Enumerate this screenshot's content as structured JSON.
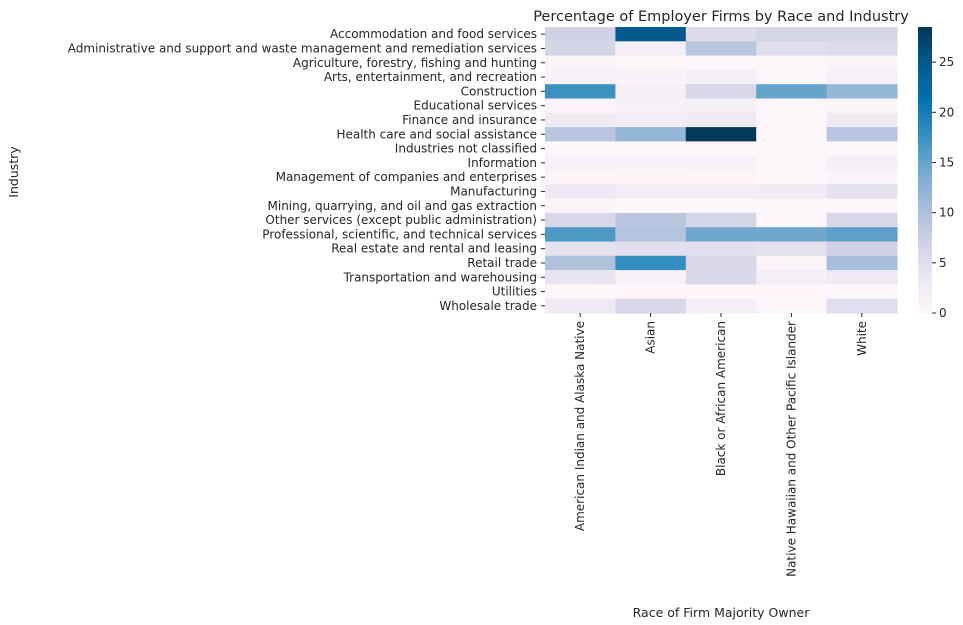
{
  "chart_data": {
    "type": "heatmap",
    "title": "Percentage of Employer Firms by Race and Industry",
    "xlabel": "Race of Firm Majority Owner",
    "ylabel": "Industry",
    "rows": [
      "Accommodation and food services",
      "Administrative and support and waste management and remediation services",
      "Agriculture, forestry, fishing and hunting",
      "Arts, entertainment, and recreation",
      "Construction",
      "Educational services",
      "Finance and insurance",
      "Health care and social assistance",
      "Industries not classified",
      "Information",
      "Management of companies and enterprises",
      "Manufacturing",
      "Mining, quarrying, and oil and gas extraction",
      "Other services (except public administration)",
      "Professional, scientific, and technical services",
      "Real estate and rental and leasing",
      "Retail trade",
      "Transportation and warehousing",
      "Utilities",
      "Wholesale trade"
    ],
    "columns": [
      "American Indian and Alaska Native",
      "Asian",
      "Black or African American",
      "Native Hawaiian and Other Pacific Islander",
      "White"
    ],
    "values": [
      [
        7.0,
        25.0,
        5.5,
        6.5,
        6.5
      ],
      [
        6.5,
        2.0,
        9.0,
        5.0,
        5.5
      ],
      [
        1.0,
        0.5,
        0.5,
        0.5,
        1.0
      ],
      [
        1.5,
        1.2,
        2.0,
        0.5,
        1.5
      ],
      [
        17.5,
        2.0,
        6.0,
        15.0,
        12.0
      ],
      [
        0.8,
        1.5,
        2.0,
        0.5,
        1.0
      ],
      [
        3.0,
        2.5,
        3.0,
        0.3,
        3.0
      ],
      [
        9.0,
        12.0,
        28.5,
        0.3,
        9.0
      ],
      [
        0.3,
        0.3,
        0.3,
        0.3,
        0.3
      ],
      [
        1.5,
        1.2,
        1.5,
        0.5,
        1.8
      ],
      [
        0.6,
        0.6,
        0.6,
        0.3,
        0.9
      ],
      [
        3.5,
        2.5,
        2.5,
        3.0,
        4.5
      ],
      [
        1.0,
        0.3,
        0.3,
        0.3,
        0.5
      ],
      [
        6.0,
        9.0,
        6.5,
        0.5,
        6.0
      ],
      [
        16.5,
        9.5,
        14.5,
        14.5,
        15.5
      ],
      [
        4.5,
        5.0,
        5.0,
        4.5,
        7.0
      ],
      [
        10.0,
        18.0,
        6.0,
        1.0,
        10.5
      ],
      [
        4.0,
        1.5,
        6.0,
        2.0,
        3.0
      ],
      [
        0.5,
        0.2,
        0.2,
        0.2,
        0.3
      ],
      [
        3.0,
        6.0,
        2.0,
        0.5,
        5.0
      ]
    ],
    "vmin": 0,
    "vmax": 28.5,
    "colorbar_ticks": [
      "0",
      "5",
      "10",
      "15",
      "20",
      "25"
    ],
    "colormap": "PuBu",
    "colors": {
      "low": "#fff7fb",
      "high": "#023858"
    }
  }
}
